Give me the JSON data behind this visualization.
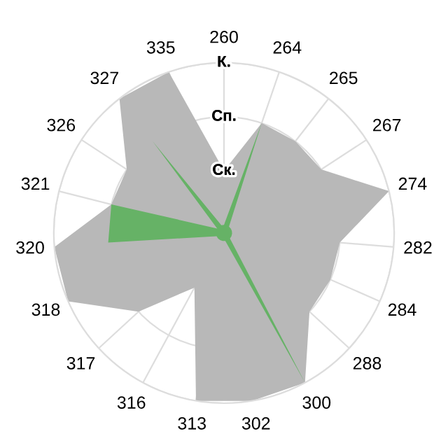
{
  "chart_data": {
    "type": "radar",
    "categories": [
      "260",
      "264",
      "265",
      "267",
      "274",
      "282",
      "284",
      "288",
      "300",
      "302",
      "313",
      "316",
      "317",
      "318",
      "320",
      "321",
      "326",
      "327",
      "335"
    ],
    "series": [
      {
        "color": "#b8b8b8",
        "values": [
          1,
          2,
          2,
          2,
          3,
          2,
          2,
          2,
          3,
          3,
          3,
          1,
          2,
          3,
          3,
          2,
          2,
          3,
          3
        ]
      },
      {
        "color": "#66b266",
        "values": [
          0,
          2,
          0,
          0,
          0,
          0,
          0,
          0,
          3,
          0,
          0,
          0,
          0,
          0,
          2,
          2,
          0,
          2,
          0
        ]
      }
    ],
    "ylim": [
      -0.15,
      3
    ],
    "yticks": [
      {
        "value": 1,
        "label": "Ск."
      },
      {
        "value": 2,
        "label": "Сп."
      },
      {
        "value": 3,
        "label": "К."
      }
    ],
    "grid": true
  }
}
